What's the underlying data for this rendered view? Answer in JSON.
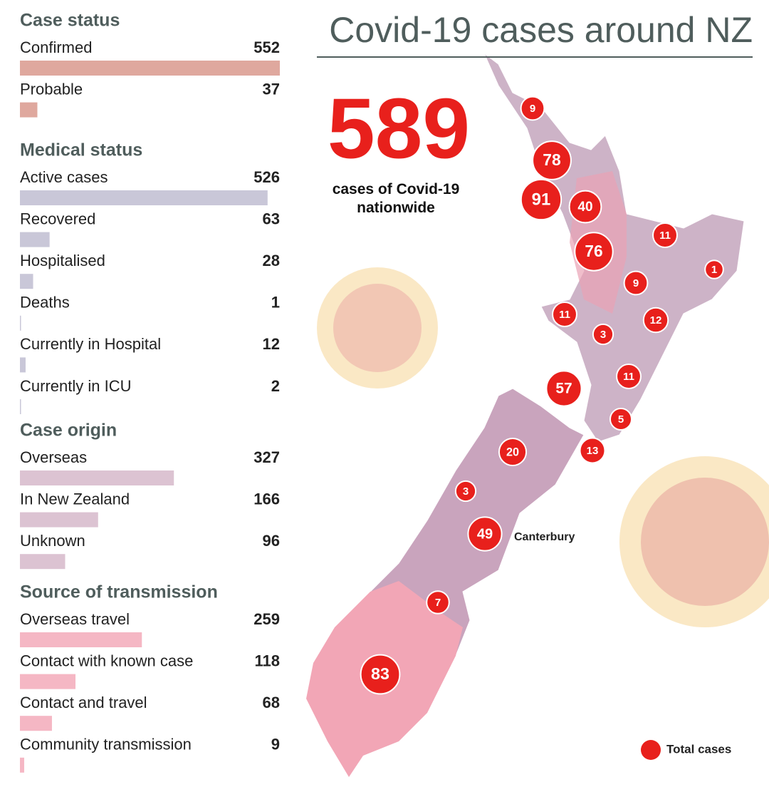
{
  "sections": [
    {
      "title": "Case status",
      "rows": [
        {
          "label": "Confirmed",
          "value": 552
        },
        {
          "label": "Probable",
          "value": 37
        }
      ]
    },
    {
      "title": "Medical status",
      "rows": [
        {
          "label": "Active cases",
          "value": 526
        },
        {
          "label": "Recovered",
          "value": 63
        },
        {
          "label": "Hospitalised",
          "value": 28
        },
        {
          "label": "Deaths",
          "value": 1
        },
        {
          "label": "Currently in Hospital",
          "value": 12
        },
        {
          "label": "Currently in ICU",
          "value": 2
        }
      ]
    },
    {
      "title": "Case origin",
      "rows": [
        {
          "label": "Overseas",
          "value": 327
        },
        {
          "label": "In New Zealand",
          "value": 166
        },
        {
          "label": "Unknown",
          "value": 96
        }
      ]
    },
    {
      "title": "Source of transmission",
      "rows": [
        {
          "label": "Overseas travel",
          "value": 259
        },
        {
          "label": "Contact with known case",
          "value": 118
        },
        {
          "label": "Contact and travel",
          "value": 68
        },
        {
          "label": "Community transmission",
          "value": 9
        }
      ]
    }
  ],
  "map": {
    "title": "Covid-19 cases around NZ",
    "total": 589,
    "total_label": "cases of Covid-19 nationwide",
    "region_label": "Canterbury",
    "legend": "Total cases",
    "bubbles": [
      9,
      78,
      91,
      40,
      76,
      11,
      1,
      9,
      11,
      12,
      3,
      11,
      57,
      5,
      13,
      20,
      3,
      49,
      7,
      83
    ]
  }
}
